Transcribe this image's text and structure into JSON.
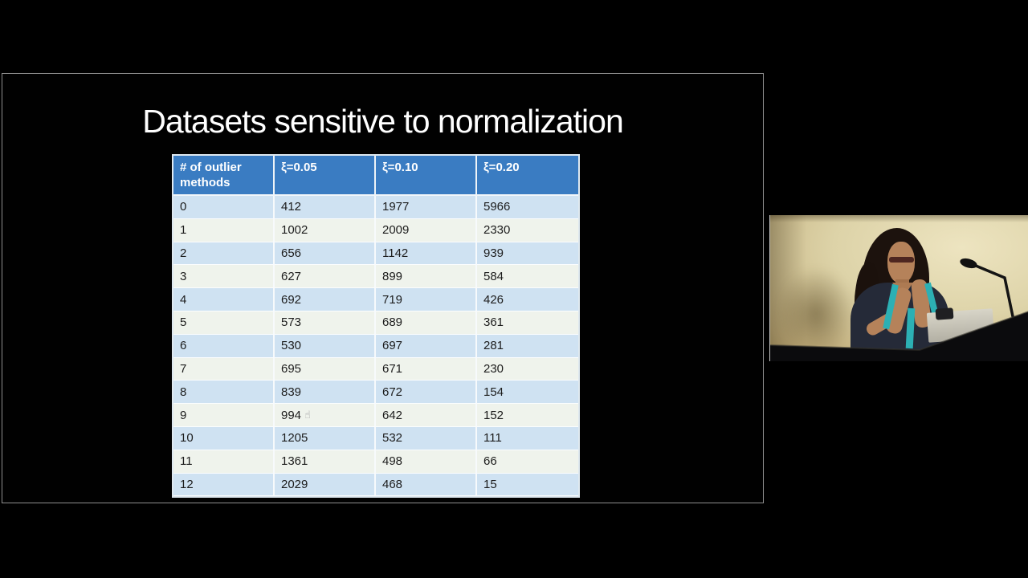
{
  "slide": {
    "title": "Datasets sensitive to normalization",
    "table": {
      "headers": [
        "# of outlier methods",
        "ξ=0.05",
        "ξ=0.10",
        "ξ=0.20"
      ],
      "rows": [
        [
          "0",
          "412",
          "1977",
          "5966"
        ],
        [
          "1",
          "1002",
          "2009",
          "2330"
        ],
        [
          "2",
          "656",
          "1142",
          "939"
        ],
        [
          "3",
          "627",
          "899",
          "584"
        ],
        [
          "4",
          "692",
          "719",
          "426"
        ],
        [
          "5",
          "573",
          "689",
          "361"
        ],
        [
          "6",
          "530",
          "697",
          "281"
        ],
        [
          "7",
          "695",
          "671",
          "230"
        ],
        [
          "8",
          "839",
          "672",
          "154"
        ],
        [
          "9",
          "994",
          "642",
          "152"
        ],
        [
          "10",
          "1205",
          "532",
          "111"
        ],
        [
          "11",
          "1361",
          "498",
          "66"
        ],
        [
          "12",
          "2029",
          "468",
          "15"
        ]
      ]
    }
  },
  "chart_data": {
    "type": "table",
    "title": "Datasets sensitive to normalization",
    "columns": [
      "# of outlier methods",
      "ξ=0.05",
      "ξ=0.10",
      "ξ=0.20"
    ],
    "rows": [
      [
        0,
        412,
        1977,
        5966
      ],
      [
        1,
        1002,
        2009,
        2330
      ],
      [
        2,
        656,
        1142,
        939
      ],
      [
        3,
        627,
        899,
        584
      ],
      [
        4,
        692,
        719,
        426
      ],
      [
        5,
        573,
        689,
        361
      ],
      [
        6,
        530,
        697,
        281
      ],
      [
        7,
        695,
        671,
        230
      ],
      [
        8,
        839,
        672,
        154
      ],
      [
        9,
        994,
        642,
        152
      ],
      [
        10,
        1205,
        532,
        111
      ],
      [
        11,
        1361,
        498,
        66
      ],
      [
        12,
        2029,
        468,
        15
      ]
    ]
  },
  "icons": {
    "cursor_hand": "☝"
  },
  "colors": {
    "table_header_bg": "#3a7cc2",
    "row_alt_blue": "#cfe2f2",
    "row_alt_white": "#eff3ec",
    "slide_background": "#010101",
    "slide_border": "#8f8f8f",
    "title_text": "#ffffff",
    "page_background": "#000000",
    "lanyard_teal": "#2cb0b4"
  }
}
